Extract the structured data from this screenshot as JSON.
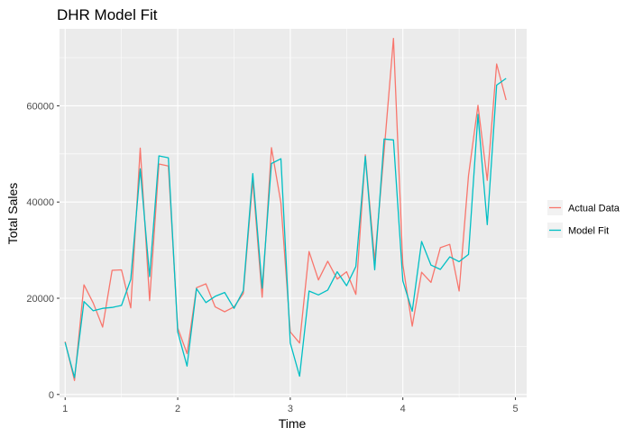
{
  "chart_data": {
    "type": "line",
    "title": "DHR Model Fit",
    "xlabel": "Time",
    "ylabel": "Total Sales",
    "xlim": [
      0.95,
      5.1
    ],
    "ylim": [
      -600,
      76000
    ],
    "x_ticks": [
      1,
      2,
      3,
      4,
      5
    ],
    "x_tick_labels": [
      "1",
      "2",
      "3",
      "4",
      "5"
    ],
    "y_ticks": [
      0,
      20000,
      40000,
      60000
    ],
    "y_tick_labels": [
      "0",
      "20000",
      "40000",
      "60000"
    ],
    "grid": true,
    "legend_position": "right",
    "x": [
      1.0,
      1.083,
      1.167,
      1.25,
      1.333,
      1.417,
      1.5,
      1.583,
      1.667,
      1.75,
      1.833,
      1.917,
      2.0,
      2.083,
      2.167,
      2.25,
      2.333,
      2.417,
      2.5,
      2.583,
      2.667,
      2.75,
      2.833,
      2.917,
      3.0,
      3.083,
      3.167,
      3.25,
      3.333,
      3.417,
      3.5,
      3.583,
      3.667,
      3.75,
      3.833,
      3.917,
      4.0,
      4.083,
      4.167,
      4.25,
      4.333,
      4.417,
      4.5,
      4.583,
      4.667,
      4.75,
      4.833,
      4.917
    ],
    "series": [
      {
        "name": "Actual Data",
        "color": "#F8766D",
        "values": [
          11000,
          2900,
          22800,
          19000,
          14000,
          25800,
          25900,
          18000,
          51200,
          19500,
          47900,
          47500,
          13800,
          8500,
          22200,
          23000,
          18200,
          17200,
          18200,
          21000,
          44500,
          20200,
          51300,
          39800,
          13000,
          10700,
          29700,
          23800,
          27700,
          24000,
          25500,
          20800,
          49800,
          27800,
          50500,
          74000,
          27000,
          14200,
          25400,
          23300,
          30500,
          31200,
          21500,
          45500,
          60100,
          44500,
          68700,
          61200
        ]
      },
      {
        "name": "Model Fit",
        "color": "#00BFC4",
        "values": [
          10800,
          3500,
          19300,
          17400,
          17900,
          18100,
          18500,
          23900,
          46900,
          24500,
          49600,
          49200,
          13000,
          5900,
          22000,
          19100,
          20400,
          21200,
          17900,
          21600,
          45900,
          22100,
          48000,
          49000,
          10700,
          3800,
          21500,
          20700,
          21700,
          25500,
          22600,
          26600,
          49500,
          25900,
          53100,
          52900,
          23600,
          17300,
          31800,
          26900,
          26000,
          28600,
          27600,
          29100,
          58200,
          35300,
          64300,
          65700
        ]
      }
    ]
  }
}
